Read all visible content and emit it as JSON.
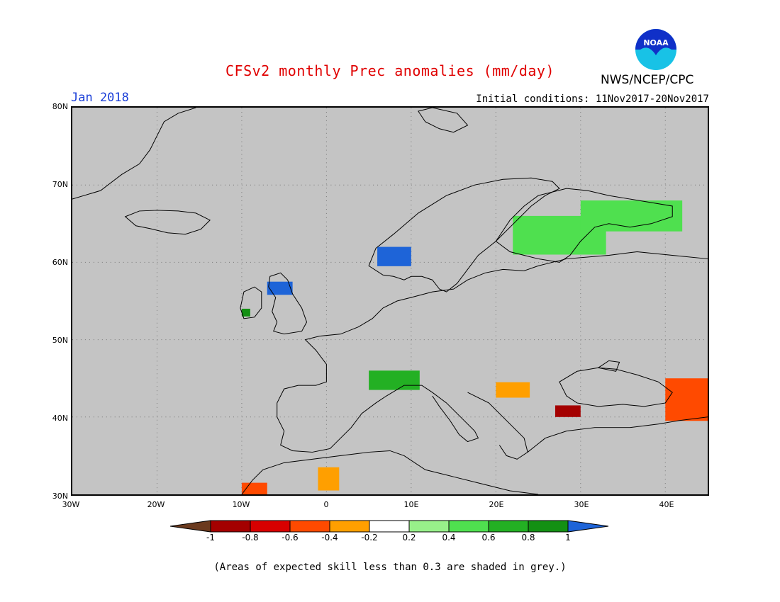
{
  "title": "CFSv2 monthly Prec anomalies (mm/day)",
  "agency": "NWS/NCEP/CPC",
  "logo_text": "NOAA",
  "valid_month": "Jan 2018",
  "initial_conditions": "Initial conditions: 11Nov2017-20Nov2017",
  "footnote": "(Areas of expected skill less than 0.3 are shaded in grey.)",
  "colors": {
    "title": "#e00000",
    "month": "#1b3fd8",
    "land_grey": "#c4c4c4",
    "coast": "#000000"
  },
  "map": {
    "lat_labels": [
      "80N",
      "70N",
      "60N",
      "50N",
      "40N",
      "30N"
    ],
    "lon_labels": [
      "30W",
      "20W",
      "10W",
      "0",
      "10E",
      "20E",
      "30E",
      "40E"
    ],
    "extent": {
      "lon": [
        -30,
        45
      ],
      "lat": [
        30,
        80
      ]
    }
  },
  "colorbar": {
    "labels": [
      "-1",
      "-0.8",
      "-0.6",
      "-0.4",
      "-0.2",
      "0.2",
      "0.4",
      "0.6",
      "0.8",
      "1"
    ],
    "colors": [
      "#6b3a1e",
      "#a40000",
      "#d80000",
      "#ff4a00",
      "#ff9f00",
      "#ffffff",
      "#98f08a",
      "#4fe04f",
      "#23b023",
      "#139013",
      "#1e64d8"
    ]
  },
  "anomaly_cells": [
    {
      "region": "Scandinavia west coast",
      "lon": [
        6,
        10
      ],
      "lat": [
        59.5,
        62
      ],
      "color": "#1e64d8"
    },
    {
      "region": "Scotland",
      "lon": [
        -7,
        -4
      ],
      "lat": [
        55.8,
        57.5
      ],
      "color": "#1e64d8"
    },
    {
      "region": "Ireland west",
      "lon": [
        -10,
        -9
      ],
      "lat": [
        53,
        54
      ],
      "color": "#139013"
    },
    {
      "region": "Finland/Karelia",
      "lon": [
        22,
        33
      ],
      "lat": [
        61,
        66
      ],
      "color": "#4fe04f"
    },
    {
      "region": "Kola",
      "lon": [
        30,
        42
      ],
      "lat": [
        64,
        68
      ],
      "color": "#4fe04f"
    },
    {
      "region": "Alps",
      "lon": [
        5,
        11
      ],
      "lat": [
        43.5,
        46
      ],
      "color": "#23b023"
    },
    {
      "region": "Balkans",
      "lon": [
        20,
        24
      ],
      "lat": [
        42.5,
        44.5
      ],
      "color": "#ff9f00"
    },
    {
      "region": "NW Turkey",
      "lon": [
        27,
        30
      ],
      "lat": [
        40,
        41.5
      ],
      "color": "#a40000"
    },
    {
      "region": "Caucasus",
      "lon": [
        40,
        45
      ],
      "lat": [
        39.5,
        45
      ],
      "color": "#ff4a00"
    },
    {
      "region": "Morocco",
      "lon": [
        -10,
        -7
      ],
      "lat": [
        30,
        31.5
      ],
      "color": "#ff4a00"
    },
    {
      "region": "Algeria",
      "lon": [
        -1,
        1.5
      ],
      "lat": [
        30.5,
        33.5
      ],
      "color": "#ff9f00"
    }
  ]
}
